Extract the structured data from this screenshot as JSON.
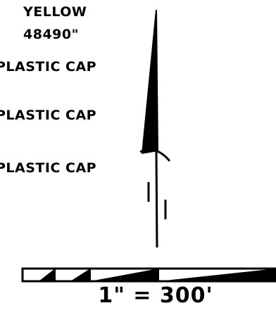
{
  "labels": {
    "color": "YELLOW",
    "number": "48490\"",
    "cap_1": "PLASTIC CAP",
    "cap_2": "PLASTIC CAP",
    "cap_3": "PLASTIC CAP"
  },
  "scale_bar": {
    "text": "1\" = 300'"
  },
  "icons": {
    "north_arrow": "north-arrow-icon",
    "scale_bar": "scale-bar-icon"
  },
  "colors": {
    "ink": "#000000",
    "paper": "#ffffff"
  }
}
